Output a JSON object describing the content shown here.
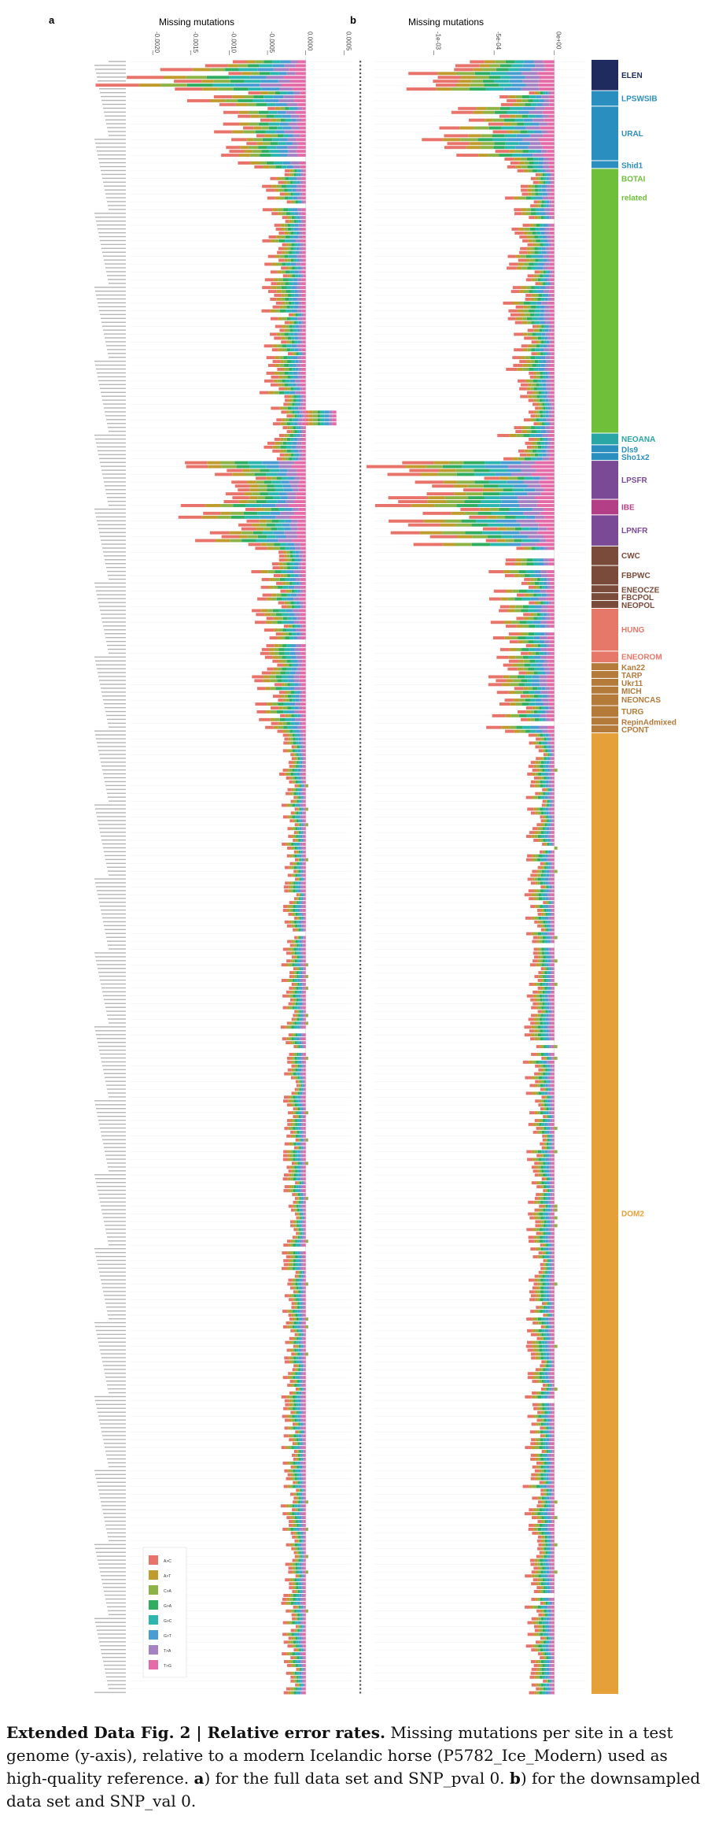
{
  "caption": {
    "figure_label": "Extended Data Fig. 2",
    "separator": " | ",
    "title": "Relative error rates.",
    "text_1": " Missing mutations per site in a test genome (y-axis), relative to a modern Icelandic horse (P5782_Ice_Modern) used as high-quality reference. ",
    "a_letter": "a",
    "text_2": ") for the full data set and SNP_pval 0. ",
    "b_letter": "b",
    "text_3": ") for the downsampled data set and SNP_val 0."
  },
  "legend": {
    "items": [
      {
        "label": "A>C",
        "color": "#e8736a"
      },
      {
        "label": "A>T",
        "color": "#c09b2e"
      },
      {
        "label": "C>A",
        "color": "#8db347"
      },
      {
        "label": "G>A",
        "color": "#2fae62"
      },
      {
        "label": "G>C",
        "color": "#2bb7b0"
      },
      {
        "label": "G>T",
        "color": "#4a9dd3"
      },
      {
        "label": "T>A",
        "color": "#a582c4"
      },
      {
        "label": "T>G",
        "color": "#e46ba8"
      }
    ]
  },
  "groups": [
    {
      "label": "ELEN",
      "color": "#1f2a5e",
      "start": 0,
      "end": 8
    },
    {
      "label": "LPSWSIB",
      "color": "#2a8fbf",
      "start": 8,
      "end": 12
    },
    {
      "label": "URAL",
      "color": "#2a8fbf",
      "start": 12,
      "end": 26
    },
    {
      "label": "Shid1",
      "color": "#2a8fbf",
      "start": 26,
      "end": 28
    },
    {
      "label": "BOTAI related",
      "color": "#6fbf3a",
      "start": 28,
      "end": 96
    },
    {
      "label": "NEOANA",
      "color": "#2aa6a6",
      "start": 96,
      "end": 99
    },
    {
      "label": "Dls9",
      "color": "#2a8fbf",
      "start": 99,
      "end": 101
    },
    {
      "label": "Sho1x2",
      "color": "#2a8fbf",
      "start": 101,
      "end": 103
    },
    {
      "label": "LPSFR",
      "color": "#7a4a96",
      "start": 103,
      "end": 113
    },
    {
      "label": "IBE",
      "color": "#b33f87",
      "start": 113,
      "end": 117
    },
    {
      "label": "LPNFR",
      "color": "#7a4a96",
      "start": 117,
      "end": 125
    },
    {
      "label": "CWC",
      "color": "#7a4a3a",
      "start": 125,
      "end": 130
    },
    {
      "label": "FBPWC",
      "color": "#7a4a3a",
      "start": 130,
      "end": 135
    },
    {
      "label": "ENEOCZE",
      "color": "#7a4a3a",
      "start": 135,
      "end": 137
    },
    {
      "label": "FBCPOL",
      "color": "#7a4a3a",
      "start": 137,
      "end": 139
    },
    {
      "label": "NEOPOL",
      "color": "#7a4a3a",
      "start": 139,
      "end": 141
    },
    {
      "label": "HUNG",
      "color": "#e6786a",
      "start": 141,
      "end": 152
    },
    {
      "label": "ENEOROM",
      "color": "#e6786a",
      "start": 152,
      "end": 155
    },
    {
      "label": "Kan22",
      "color": "#b37a3a",
      "start": 155,
      "end": 157
    },
    {
      "label": "TARP",
      "color": "#b37a3a",
      "start": 157,
      "end": 159
    },
    {
      "label": "Ukr11",
      "color": "#b37a3a",
      "start": 159,
      "end": 161
    },
    {
      "label": "MICH",
      "color": "#b37a3a",
      "start": 161,
      "end": 163
    },
    {
      "label": "NEONCAS",
      "color": "#b37a3a",
      "start": 163,
      "end": 166
    },
    {
      "label": "TURG",
      "color": "#b37a3a",
      "start": 166,
      "end": 169
    },
    {
      "label": "RepinAdmixed",
      "color": "#b37a3a",
      "start": 169,
      "end": 171
    },
    {
      "label": "CPONT",
      "color": "#b37a3a",
      "start": 171,
      "end": 173
    },
    {
      "label": "DOM2",
      "color": "#e6a03a",
      "start": 173,
      "end": 420
    }
  ],
  "chart_data": [
    {
      "panel": "a",
      "type": "bar",
      "orientation": "horizontal",
      "stacked": true,
      "xlabel": "Missing mutations",
      "ylabel": "",
      "x_ticks": [
        "-0.0020",
        "-0.0015",
        "-0.0010",
        "-0.0005",
        "0.0000",
        "0.0005"
      ],
      "xlim": [
        -0.0023,
        0.0006
      ],
      "n_samples": 420,
      "sample_labels_legible": false,
      "profile_description": "per-sample stacked bars (8 substitution classes) extending left from 0",
      "group_mean_totals": [
        {
          "group": "ELEN",
          "value": -0.0018
        },
        {
          "group": "LPSWSIB",
          "value": -0.0011
        },
        {
          "group": "URAL",
          "value": -0.0009
        },
        {
          "group": "Shid1",
          "value": -0.0007
        },
        {
          "group": "BOTAI related",
          "value": -0.0004
        },
        {
          "group": "NEOANA",
          "value": -0.0004
        },
        {
          "group": "LPSFR",
          "value": -0.0012
        },
        {
          "group": "IBE",
          "value": -0.0013
        },
        {
          "group": "LPNFR",
          "value": -0.0012
        },
        {
          "group": "CWC",
          "value": -0.0005
        },
        {
          "group": "HUNG",
          "value": -0.0005
        },
        {
          "group": "DOM2",
          "value": -0.00022
        }
      ],
      "positive_outliers_near_row": 90
    },
    {
      "panel": "b",
      "type": "bar",
      "orientation": "horizontal",
      "stacked": true,
      "xlabel": "Missing mutations",
      "ylabel": "",
      "x_ticks": [
        "-1e-03",
        "-5e-04",
        "0e+00"
      ],
      "xlim": [
        -0.0015,
        0.00025
      ],
      "n_samples": 420,
      "sample_labels_legible": false,
      "group_mean_totals": [
        {
          "group": "ELEN",
          "value": -0.0013
        },
        {
          "group": "URAL",
          "value": -0.00075
        },
        {
          "group": "BOTAI related",
          "value": -0.00028
        },
        {
          "group": "LPSFR",
          "value": -0.001
        },
        {
          "group": "IBE",
          "value": -0.0011
        },
        {
          "group": "LPNFR",
          "value": -0.001
        },
        {
          "group": "HUNG",
          "value": -0.0004
        },
        {
          "group": "DOM2",
          "value": -0.00017
        }
      ]
    }
  ]
}
